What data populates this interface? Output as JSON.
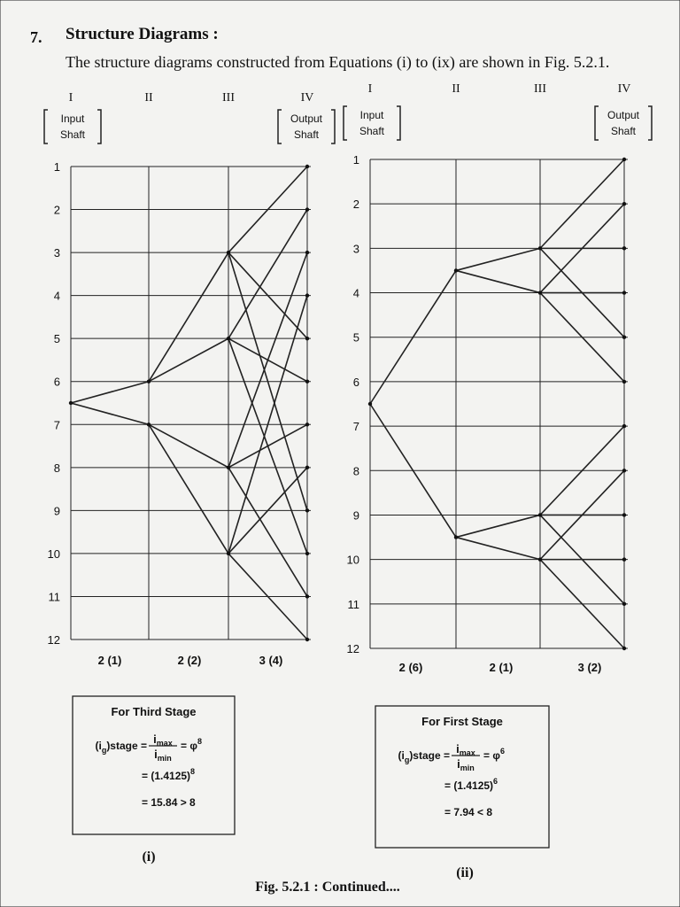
{
  "section": {
    "number": "7.",
    "title": "Structure Diagrams :",
    "text": "The structure diagrams constructed from Equations (i) to (ix) are shown in Fig. 5.2.1."
  },
  "diagrams": [
    {
      "shafts": [
        "I",
        "II",
        "III",
        "IV"
      ],
      "input_label": [
        "Input",
        "Shaft"
      ],
      "output_label": [
        "Output",
        "Shaft"
      ],
      "rows": [
        "1",
        "2",
        "3",
        "4",
        "5",
        "6",
        "7",
        "8",
        "9",
        "10",
        "11",
        "12"
      ],
      "stages": [
        "2 (1)",
        "2 (2)",
        "3 (4)"
      ],
      "box": {
        "title": "For Third Stage",
        "lhs": "(i",
        "lhs_sub": "g",
        "lhs_tail": ")stage =",
        "num": "i",
        "num_sub": "max",
        "den": "i",
        "den_sub": "min",
        "rhs": "= φ",
        "rhs_exp": "8",
        "line2": "= (1.4125)",
        "line2_exp": "8",
        "line3": "= 15.84 > 8"
      },
      "caption": "(i)"
    },
    {
      "shafts": [
        "I",
        "II",
        "III",
        "IV"
      ],
      "input_label": [
        "Input",
        "Shaft"
      ],
      "output_label": [
        "Output",
        "Shaft"
      ],
      "rows": [
        "1",
        "2",
        "3",
        "4",
        "5",
        "6",
        "7",
        "8",
        "9",
        "10",
        "11",
        "12"
      ],
      "stages": [
        "2 (6)",
        "2 (1)",
        "3 (2)"
      ],
      "box": {
        "title": "For First Stage",
        "lhs": "(i",
        "lhs_sub": "g",
        "lhs_tail": ")stage =",
        "num": "i",
        "num_sub": "max",
        "den": "i",
        "den_sub": "min",
        "rhs": "= φ",
        "rhs_exp": "6",
        "line2": "= (1.4125)",
        "line2_exp": "6",
        "line3": "= 7.94 < 8"
      },
      "caption": "(ii)"
    }
  ],
  "figure_caption": "Fig. 5.2.1 : Continued...."
}
